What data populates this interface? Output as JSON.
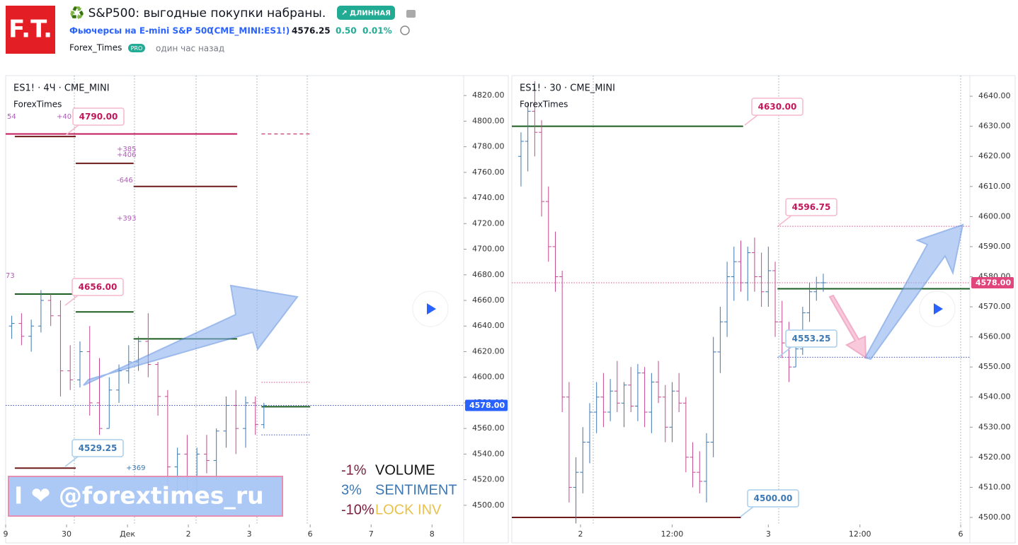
{
  "header": {
    "logo": "F.T.",
    "title": "♻️ S&P500: выгодные покупки набраны.",
    "badge": "↗ ДЛИННАЯ",
    "instrument": "Фьючерсы на E-mini S&P 500",
    "symbol": "(CME_MINI:ES1!)",
    "price": "4576.25",
    "change": "0.50",
    "change_pct": "0.01%",
    "author": "Forex_Times",
    "author_badge": "PRO",
    "time": "один час назад"
  },
  "chart_data": [
    {
      "type": "ohlc",
      "title": "ES1! · 4Ч · CME_MINI",
      "subtitle": "ForexTimes",
      "up_color": "#3c78b4",
      "down_color": "#c2498f",
      "xlim": [
        0,
        7.52
      ],
      "ylim": [
        4485,
        4835
      ],
      "xticks": [
        {
          "value": 0,
          "label": "9"
        },
        {
          "value": 1,
          "label": "30"
        },
        {
          "value": 2,
          "label": "Дек"
        },
        {
          "value": 3,
          "label": "2"
        },
        {
          "value": 4,
          "label": "3"
        },
        {
          "value": 5,
          "label": "6"
        },
        {
          "value": 6,
          "label": "7"
        },
        {
          "value": 7,
          "label": "8"
        }
      ],
      "yticks": [
        {
          "value": 4500,
          "label": "4500.00"
        },
        {
          "value": 4520,
          "label": "4520.00"
        },
        {
          "value": 4540,
          "label": "4540.00"
        },
        {
          "value": 4560,
          "label": "4560.00"
        },
        {
          "value": 4580,
          "label": "4580.00"
        },
        {
          "value": 4600,
          "label": "4600.00"
        },
        {
          "value": 4620,
          "label": "4620.00"
        },
        {
          "value": 4640,
          "label": "4640.00"
        },
        {
          "value": 4660,
          "label": "4660.00"
        },
        {
          "value": 4680,
          "label": "4680.00"
        },
        {
          "value": 4700,
          "label": "4700.00"
        },
        {
          "value": 4720,
          "label": "4720.00"
        },
        {
          "value": 4740,
          "label": "4740.00"
        },
        {
          "value": 4760,
          "label": "4760.00"
        },
        {
          "value": 4780,
          "label": "4780.00"
        },
        {
          "value": 4800,
          "label": "4800.00"
        },
        {
          "value": 4820,
          "label": "4820.00"
        }
      ],
      "x": [
        0.1,
        0.26,
        0.42,
        0.58,
        0.74,
        0.9,
        1.06,
        1.22,
        1.38,
        1.54,
        1.7,
        1.86,
        2.02,
        2.18,
        2.34,
        2.5,
        2.66,
        2.82,
        2.98,
        3.14,
        3.3,
        3.46,
        3.62,
        3.78,
        3.94,
        4.1,
        4.24
      ],
      "open": [
        4640,
        4642,
        4632,
        4640,
        4660,
        4648,
        4605,
        4598,
        4620,
        4580,
        4560,
        4590,
        4605,
        4612,
        4628,
        4610,
        4585,
        4530,
        4540,
        4510,
        4540,
        4535,
        4558,
        4578,
        4560,
        4580,
        4563
      ],
      "high": [
        4648,
        4650,
        4645,
        4668,
        4665,
        4660,
        4625,
        4628,
        4640,
        4615,
        4600,
        4610,
        4625,
        4632,
        4650,
        4612,
        4590,
        4545,
        4555,
        4545,
        4555,
        4560,
        4585,
        4590,
        4585,
        4585,
        4580
      ],
      "low": [
        4630,
        4625,
        4620,
        4635,
        4640,
        4585,
        4590,
        4592,
        4570,
        4555,
        4560,
        4580,
        4595,
        4605,
        4600,
        4570,
        4505,
        4510,
        4500,
        4505,
        4525,
        4520,
        4545,
        4540,
        4545,
        4555,
        4560
      ],
      "close": [
        4642,
        4632,
        4640,
        4660,
        4648,
        4605,
        4598,
        4620,
        4580,
        4560,
        4590,
        4605,
        4612,
        4628,
        4610,
        4585,
        4530,
        4540,
        4510,
        4540,
        4535,
        4558,
        4578,
        4560,
        4580,
        4563,
        4578
      ],
      "last": 4578,
      "last_label": "4578.00",
      "levels": [
        {
          "value": 4790,
          "x1": 0,
          "x2": 3.8,
          "color": "#c2185b",
          "style": "solid"
        },
        {
          "value": 4790,
          "x1": 4.2,
          "x2": 5,
          "color": "#c2185b",
          "style": "dashed"
        },
        {
          "value": 4788,
          "x1": 0.15,
          "x2": 1.15,
          "color": "#6d1a1a",
          "style": "solid"
        },
        {
          "value": 4767,
          "x1": 1.15,
          "x2": 2.1,
          "color": "#6d1a1a",
          "style": "solid"
        },
        {
          "value": 4749,
          "x1": 2.1,
          "x2": 3.8,
          "color": "#6d1a1a",
          "style": "solid"
        },
        {
          "value": 4665,
          "x1": 0.15,
          "x2": 1.15,
          "color": "#1b5e20",
          "style": "solid"
        },
        {
          "value": 4651,
          "x1": 1.15,
          "x2": 2.1,
          "color": "#1b5e20",
          "style": "solid"
        },
        {
          "value": 4630,
          "x1": 2.1,
          "x2": 3.8,
          "color": "#1b5e20",
          "style": "solid"
        },
        {
          "value": 4577,
          "x1": 4.2,
          "x2": 5,
          "color": "#1b5e20",
          "style": "solid"
        },
        {
          "value": 4596,
          "x1": 4.2,
          "x2": 5,
          "color": "#d05090",
          "style": "dotted"
        },
        {
          "value": 4555,
          "x1": 4.2,
          "x2": 5,
          "color": "#3f51b5",
          "style": "dotted"
        },
        {
          "value": 4529,
          "x1": 0.15,
          "x2": 1.15,
          "color": "#6d1a1a",
          "style": "solid"
        }
      ],
      "annotations": [
        {
          "text": "4790.00",
          "color": "#c2185b"
        },
        {
          "text": "4656.00",
          "color": "#c2185b"
        },
        {
          "text": "4529.25",
          "color": "#3c78b4"
        }
      ],
      "notes": [
        {
          "text": "+40",
          "color": "#b05cb8"
        },
        {
          "text": "54",
          "color": "#b05cb8"
        },
        {
          "text": "+385",
          "color": "#b05cb8"
        },
        {
          "text": "+406",
          "color": "#b05cb8"
        },
        {
          "text": "-646",
          "color": "#b05cb8"
        },
        {
          "text": "+393",
          "color": "#b05cb8"
        },
        {
          "text": "+369",
          "color": "#3c78b4"
        },
        {
          "text": "73",
          "color": "#b05cb8"
        }
      ],
      "banner": "I ❤ @forextimes_ru",
      "stats": [
        {
          "pct": "-1%",
          "name": "VOLUME",
          "pct_color": "#7a1f3d",
          "name_color": "#111"
        },
        {
          "pct": "3%",
          "name": "SENTIMENT",
          "pct_color": "#3c78b4",
          "name_color": "#3c78b4"
        },
        {
          "pct": "-10%",
          "name": "LOCK INV",
          "pct_color": "#7a1f3d",
          "name_color": "#e8c24a"
        }
      ]
    },
    {
      "type": "ohlc",
      "title": "ES1! · 30 · CME_MINI",
      "subtitle": "ForexTimes",
      "up_color": "#3c78b4",
      "down_color": "#c2498f",
      "xlim": [
        0,
        100
      ],
      "ylim": [
        4497.65,
        4646.6
      ],
      "xticks": [
        {
          "value": 15,
          "label": "2"
        },
        {
          "value": 35,
          "label": "12:00"
        },
        {
          "value": 56,
          "label": "3"
        },
        {
          "value": 76,
          "label": "12:00"
        },
        {
          "value": 98,
          "label": "6"
        }
      ],
      "yticks": [
        {
          "value": 4500,
          "label": "4500.00"
        },
        {
          "value": 4510,
          "label": "4510.00"
        },
        {
          "value": 4520,
          "label": "4520.00"
        },
        {
          "value": 4530,
          "label": "4530.00"
        },
        {
          "value": 4540,
          "label": "4540.00"
        },
        {
          "value": 4550,
          "label": "4550.00"
        },
        {
          "value": 4560,
          "label": "4560.00"
        },
        {
          "value": 4570,
          "label": "4570.00"
        },
        {
          "value": 4580,
          "label": "4580.00"
        },
        {
          "value": 4590,
          "label": "4590.00"
        },
        {
          "value": 4600,
          "label": "4600.00"
        },
        {
          "value": 4610,
          "label": "4610.00"
        },
        {
          "value": 4620,
          "label": "4620.00"
        },
        {
          "value": 4630,
          "label": "4630.00"
        },
        {
          "value": 4640,
          "label": "4640.00"
        }
      ],
      "x": [
        2,
        3.5,
        5,
        6.5,
        8,
        9.5,
        11,
        12.5,
        14,
        15.5,
        17,
        18.5,
        20,
        21.5,
        23,
        24.5,
        26,
        27.5,
        29,
        30.5,
        32,
        33.5,
        35,
        36.5,
        38,
        39.5,
        41,
        42.5,
        44,
        45.5,
        47,
        48.5,
        50,
        51.5,
        53,
        54.5,
        56,
        57.5,
        59,
        60.5,
        62,
        63.5,
        65,
        66.5,
        68
      ],
      "open": [
        4620,
        4625,
        4635,
        4628,
        4605,
        4590,
        4580,
        4540,
        4510,
        4515,
        4525,
        4535,
        4540,
        4535,
        4542,
        4538,
        4544,
        4537,
        4548,
        4535,
        4545,
        4540,
        4530,
        4542,
        4538,
        4520,
        4515,
        4512,
        4525,
        4555,
        4565,
        4580,
        4585,
        4578,
        4588,
        4580,
        4575,
        4582,
        4565,
        4558,
        4550,
        4556,
        4568,
        4575,
        4578
      ],
      "high": [
        4628,
        4638,
        4645,
        4632,
        4610,
        4595,
        4582,
        4545,
        4520,
        4530,
        4538,
        4545,
        4548,
        4546,
        4552,
        4545,
        4550,
        4551,
        4550,
        4548,
        4552,
        4544,
        4545,
        4548,
        4540,
        4525,
        4522,
        4528,
        4560,
        4570,
        4585,
        4590,
        4592,
        4590,
        4593,
        4588,
        4590,
        4585,
        4572,
        4565,
        4560,
        4570,
        4578,
        4580,
        4581
      ],
      "low": [
        4610,
        4615,
        4620,
        4600,
        4585,
        4575,
        4535,
        4505,
        4498,
        4508,
        4518,
        4528,
        4530,
        4532,
        4535,
        4530,
        4535,
        4532,
        4530,
        4528,
        4538,
        4525,
        4525,
        4535,
        4515,
        4510,
        4508,
        4505,
        4520,
        4548,
        4560,
        4572,
        4575,
        4572,
        4575,
        4570,
        4570,
        4560,
        4553,
        4545,
        4550,
        4554,
        4565,
        4572,
        4575
      ],
      "close": [
        4625,
        4635,
        4628,
        4605,
        4590,
        4580,
        4540,
        4510,
        4515,
        4525,
        4535,
        4540,
        4535,
        4542,
        4538,
        4544,
        4537,
        4548,
        4535,
        4545,
        4540,
        4530,
        4542,
        4538,
        4520,
        4515,
        4512,
        4525,
        4555,
        4565,
        4580,
        4585,
        4578,
        4588,
        4580,
        4575,
        4582,
        4565,
        4558,
        4550,
        4556,
        4568,
        4575,
        4578,
        4578
      ],
      "last": 4578,
      "last_label": "4578.00",
      "levels": [
        {
          "value": 4630,
          "x1": 0,
          "x2": 50.5,
          "color": "#1b5e20",
          "style": "solid"
        },
        {
          "value": 4500,
          "x1": 0,
          "x2": 50,
          "color": "#6d1a1a",
          "style": "solid"
        },
        {
          "value": 4596.75,
          "x1": 58,
          "x2": 100,
          "color": "#d05090",
          "style": "dotted"
        },
        {
          "value": 4576,
          "x1": 58,
          "x2": 100,
          "color": "#1b5e20",
          "style": "solid"
        },
        {
          "value": 4553.25,
          "x1": 58,
          "x2": 100,
          "color": "#3f51b5",
          "style": "dotted"
        }
      ],
      "annotations": [
        {
          "text": "4630.00",
          "color": "#c2185b"
        },
        {
          "text": "4596.75",
          "color": "#c2185b"
        },
        {
          "text": "4553.25",
          "color": "#3c78b4"
        },
        {
          "text": "4500.00",
          "color": "#3c78b4"
        }
      ]
    }
  ]
}
